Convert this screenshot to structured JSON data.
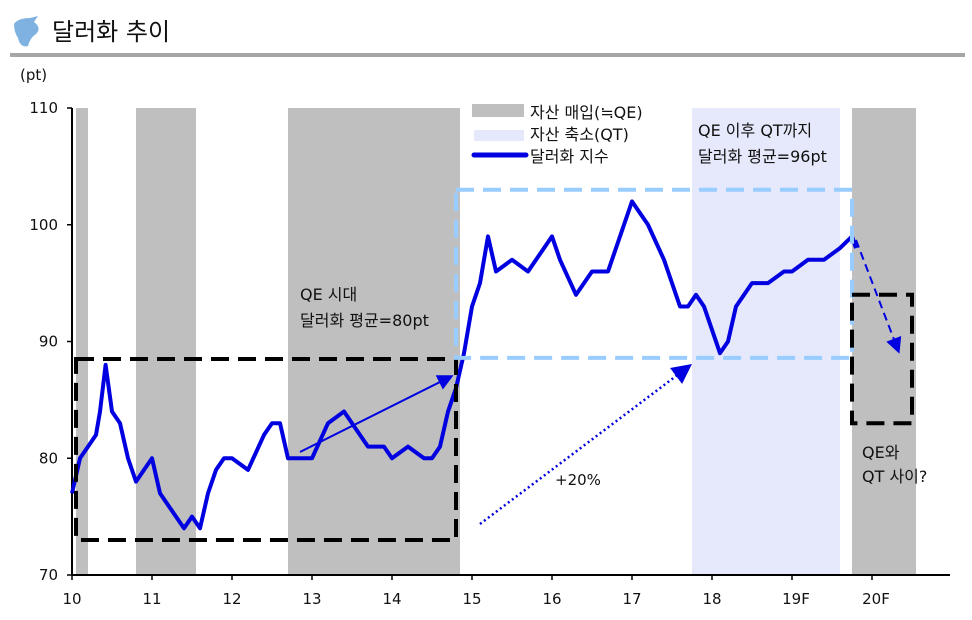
{
  "header": {
    "title": "달러화 추이",
    "icon": "logo-icon"
  },
  "chart_data": {
    "type": "line",
    "title": "달러화 추이",
    "ylabel": "(pt)",
    "ylim": [
      70,
      110
    ],
    "yticks": [
      70,
      80,
      90,
      100,
      110
    ],
    "xlim": [
      2010,
      2021
    ],
    "xticks": [
      {
        "v": 2010,
        "label": "10"
      },
      {
        "v": 2011,
        "label": "11"
      },
      {
        "v": 2012,
        "label": "12"
      },
      {
        "v": 2013,
        "label": "13"
      },
      {
        "v": 2014,
        "label": "14"
      },
      {
        "v": 2015,
        "label": "15"
      },
      {
        "v": 2016,
        "label": "16"
      },
      {
        "v": 2017,
        "label": "17"
      },
      {
        "v": 2018,
        "label": "18"
      },
      {
        "v": 2019,
        "label": "19F"
      },
      {
        "v": 2020,
        "label": "20F"
      }
    ],
    "legend": [
      {
        "label": "자산 매입(≒QE)",
        "color": "#bfbfbf"
      },
      {
        "label": "자산 축소(QT)",
        "color": "#e6e9fb"
      },
      {
        "label": "달러화 지수",
        "color": "#0000e0"
      }
    ],
    "qe_periods": [
      [
        2010.05,
        2010.2
      ],
      [
        2010.8,
        2011.55
      ],
      [
        2012.7,
        2014.85
      ],
      [
        2019.75,
        2020.55
      ]
    ],
    "qt_periods": [
      [
        2017.75,
        2019.6
      ]
    ],
    "series": [
      {
        "name": "달러화 지수",
        "x": [
          2010.0,
          2010.1,
          2010.2,
          2010.3,
          2010.35,
          2010.42,
          2010.5,
          2010.6,
          2010.7,
          2010.8,
          2010.9,
          2011.0,
          2011.1,
          2011.2,
          2011.3,
          2011.4,
          2011.5,
          2011.6,
          2011.7,
          2011.8,
          2011.9,
          2012.0,
          2012.2,
          2012.4,
          2012.5,
          2012.6,
          2012.7,
          2012.9,
          2013.0,
          2013.2,
          2013.4,
          2013.5,
          2013.7,
          2013.9,
          2014.0,
          2014.2,
          2014.4,
          2014.5,
          2014.6,
          2014.7,
          2014.8,
          2014.9,
          2015.0,
          2015.1,
          2015.2,
          2015.3,
          2015.5,
          2015.7,
          2015.9,
          2016.0,
          2016.1,
          2016.3,
          2016.5,
          2016.7,
          2016.9,
          2017.0,
          2017.2,
          2017.4,
          2017.6,
          2017.7,
          2017.8,
          2017.9,
          2018.0,
          2018.1,
          2018.2,
          2018.3,
          2018.5,
          2018.7,
          2018.9,
          2019.0,
          2019.2,
          2019.4,
          2019.6,
          2019.75,
          2019.8
        ],
        "values": [
          77,
          80,
          81,
          82,
          84,
          88,
          84,
          83,
          80,
          78,
          79,
          80,
          77,
          76,
          75,
          74,
          75,
          74,
          77,
          79,
          80,
          80,
          79,
          82,
          83,
          83,
          80,
          80,
          80,
          83,
          84,
          83,
          81,
          81,
          80,
          81,
          80,
          80,
          81,
          84,
          86,
          89,
          93,
          95,
          99,
          96,
          97,
          96,
          98,
          99,
          97,
          94,
          96,
          96,
          100,
          102,
          100,
          97,
          93,
          93,
          94,
          93,
          91,
          89,
          90,
          93,
          95,
          95,
          96,
          96,
          97,
          97,
          98,
          99,
          98
        ]
      }
    ],
    "annotations": {
      "qe_era": [
        "QE 시대",
        "달러화 평균=80pt"
      ],
      "post_qe": [
        "QE 이후 QT까지",
        "달러화 평균=96pt"
      ],
      "change": "+20%",
      "question": [
        "QE와",
        "QT 사이?"
      ]
    },
    "boxes": [
      {
        "name": "qe-era-box",
        "x": [
          2010.05,
          2014.8
        ],
        "y": [
          73,
          88.5
        ],
        "color": "#000000"
      },
      {
        "name": "post-qe-box",
        "x": [
          2014.8,
          2019.75
        ],
        "y": [
          88.6,
          103
        ],
        "color": "#99ccff"
      },
      {
        "name": "forecast-box",
        "x": [
          2019.75,
          2020.5
        ],
        "y": [
          83,
          94
        ],
        "color": "#000000"
      }
    ]
  }
}
